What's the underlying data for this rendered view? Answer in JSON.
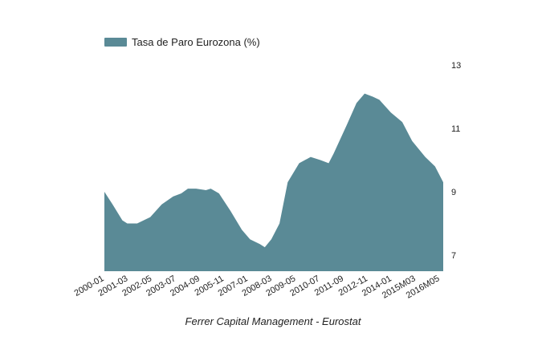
{
  "chart_data": {
    "type": "area",
    "title": "",
    "xlabel": "Ferrer Capital Management - Eurostat",
    "ylabel": "",
    "legend": {
      "label": "Tasa de Paro Eurozona (%)",
      "placement": "top-left"
    },
    "colors": {
      "series": "#5a8a96"
    },
    "ylim": [
      6.5,
      13
    ],
    "yticks": [
      7,
      9,
      11,
      13
    ],
    "y_axis_side": "right",
    "grid": false,
    "x_tick_labels": [
      "2000-01",
      "2001-03",
      "2002-05",
      "2003-07",
      "2004-09",
      "2005-11",
      "2007-01",
      "2008-03",
      "2009-05",
      "2010-07",
      "2011-09",
      "2012-11",
      "2014-01",
      "2015M03",
      "2016M05"
    ],
    "series": [
      {
        "name": "Tasa de Paro Eurozona (%)",
        "points": [
          [
            "2000-01",
            9.0
          ],
          [
            "2000-06",
            8.6
          ],
          [
            "2000-12",
            8.1
          ],
          [
            "2001-03",
            8.0
          ],
          [
            "2001-09",
            8.0
          ],
          [
            "2002-05",
            8.2
          ],
          [
            "2002-12",
            8.6
          ],
          [
            "2003-07",
            8.85
          ],
          [
            "2003-12",
            8.95
          ],
          [
            "2004-04",
            9.1
          ],
          [
            "2004-09",
            9.1
          ],
          [
            "2005-03",
            9.05
          ],
          [
            "2005-06",
            9.1
          ],
          [
            "2005-11",
            8.95
          ],
          [
            "2006-06",
            8.4
          ],
          [
            "2007-01",
            7.8
          ],
          [
            "2007-06",
            7.5
          ],
          [
            "2007-12",
            7.35
          ],
          [
            "2008-03",
            7.25
          ],
          [
            "2008-07",
            7.5
          ],
          [
            "2008-12",
            8.0
          ],
          [
            "2009-05",
            9.3
          ],
          [
            "2009-12",
            9.9
          ],
          [
            "2010-07",
            10.1
          ],
          [
            "2011-01",
            10.0
          ],
          [
            "2011-06",
            9.9
          ],
          [
            "2011-09",
            10.2
          ],
          [
            "2012-05",
            11.1
          ],
          [
            "2012-11",
            11.8
          ],
          [
            "2013-04",
            12.1
          ],
          [
            "2013-09",
            12.0
          ],
          [
            "2014-01",
            11.9
          ],
          [
            "2014-08",
            11.5
          ],
          [
            "2015-03",
            11.2
          ],
          [
            "2015-09",
            10.6
          ],
          [
            "2016-05",
            10.1
          ],
          [
            "2016-11",
            9.8
          ],
          [
            "2017-04",
            9.3
          ]
        ]
      }
    ]
  }
}
